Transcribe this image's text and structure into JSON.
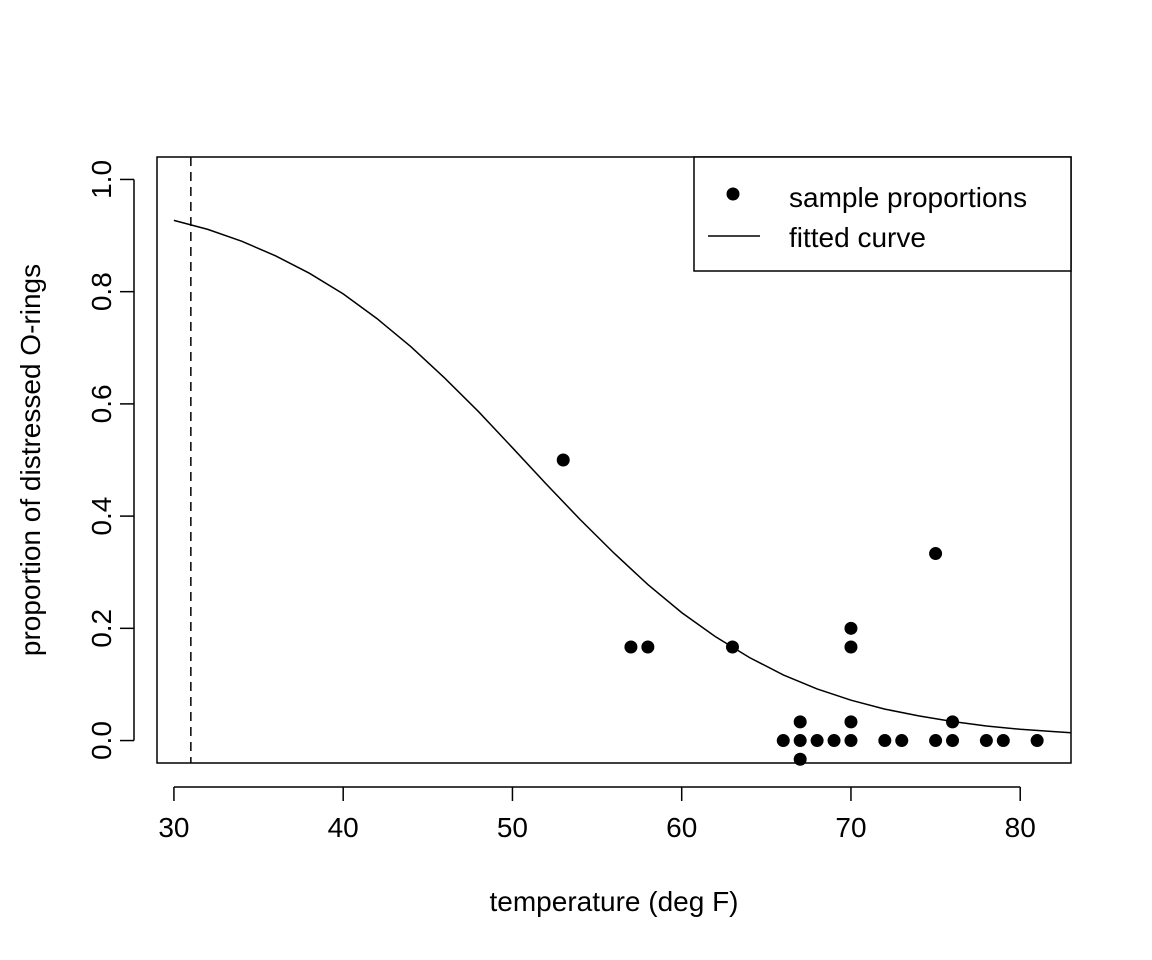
{
  "chart_data": {
    "type": "scatter",
    "title": "",
    "xlabel": "temperature (deg F)",
    "ylabel": "proportion of distressed O-rings",
    "xlim": [
      29,
      83
    ],
    "ylim": [
      -0.04,
      1.04
    ],
    "x_ticks": [
      30,
      40,
      50,
      60,
      70,
      80
    ],
    "x_tick_labels": [
      "30",
      "40",
      "50",
      "60",
      "70",
      "80"
    ],
    "y_ticks": [
      0.0,
      0.2,
      0.4,
      0.6,
      0.8,
      1.0
    ],
    "y_tick_labels": [
      "0.0",
      "0.2",
      "0.4",
      "0.6",
      "0.8",
      "1.0"
    ],
    "grid": false,
    "legend": {
      "placement": "top-right",
      "entries": [
        {
          "label": "sample proportions",
          "marker": "filled-circle"
        },
        {
          "label": "fitted curve",
          "marker": "solid-line"
        }
      ]
    },
    "series": [
      {
        "name": "sample proportions",
        "kind": "points",
        "color": "#000000",
        "points": [
          {
            "x": 53,
            "y": 0.5
          },
          {
            "x": 57,
            "y": 0.1667
          },
          {
            "x": 58,
            "y": 0.1667
          },
          {
            "x": 63,
            "y": 0.1667
          },
          {
            "x": 66,
            "y": 0.0
          },
          {
            "x": 67,
            "y": 0.0333
          },
          {
            "x": 67,
            "y": 0.0
          },
          {
            "x": 67,
            "y": -0.0333
          },
          {
            "x": 68,
            "y": 0.0
          },
          {
            "x": 69,
            "y": 0.0
          },
          {
            "x": 70,
            "y": 0.2
          },
          {
            "x": 70,
            "y": 0.1667
          },
          {
            "x": 70,
            "y": 0.0333
          },
          {
            "x": 70,
            "y": 0.0
          },
          {
            "x": 72,
            "y": 0.0
          },
          {
            "x": 73,
            "y": 0.0
          },
          {
            "x": 75,
            "y": 0.3333
          },
          {
            "x": 75,
            "y": 0.0
          },
          {
            "x": 76,
            "y": 0.0333
          },
          {
            "x": 76,
            "y": 0.0
          },
          {
            "x": 78,
            "y": 0.0
          },
          {
            "x": 79,
            "y": 0.0
          },
          {
            "x": 81,
            "y": 0.0
          }
        ]
      },
      {
        "name": "fitted curve",
        "kind": "line",
        "color": "#000000",
        "x": [
          30,
          32,
          34,
          36,
          38,
          40,
          42,
          44,
          46,
          48,
          50,
          52,
          54,
          56,
          58,
          60,
          62,
          64,
          66,
          68,
          70,
          72,
          74,
          76,
          78,
          80,
          82,
          83
        ],
        "y": [
          0.927,
          0.911,
          0.89,
          0.864,
          0.833,
          0.796,
          0.752,
          0.702,
          0.646,
          0.586,
          0.522,
          0.457,
          0.394,
          0.334,
          0.278,
          0.228,
          0.185,
          0.148,
          0.117,
          0.092,
          0.072,
          0.056,
          0.044,
          0.034,
          0.026,
          0.02,
          0.016,
          0.014
        ]
      }
    ],
    "reference_lines": [
      {
        "orientation": "vertical",
        "x": 31,
        "style": "dashed",
        "color": "#000000"
      }
    ]
  }
}
